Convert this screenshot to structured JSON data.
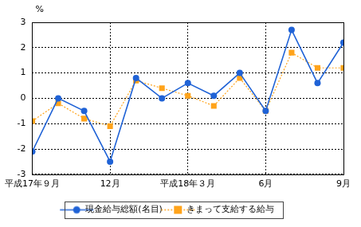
{
  "chart_data": {
    "type": "line",
    "y_label": "%",
    "categories": [
      "平成17年９月",
      null,
      null,
      "12月",
      null,
      null,
      "平成18年３月",
      null,
      null,
      "6月",
      null,
      null,
      "9月"
    ],
    "series": [
      {
        "name": "現金給与総額(名目)",
        "color": "#1f62d6",
        "marker": "circle",
        "line_style": "solid",
        "values": [
          -2.1,
          0.0,
          -0.5,
          -2.5,
          0.8,
          0.0,
          0.6,
          0.1,
          1.0,
          -0.5,
          2.7,
          0.6,
          2.2
        ]
      },
      {
        "name": "きまって支給する給与",
        "color": "#ffa31a",
        "marker": "square",
        "line_style": "dotted",
        "values": [
          -0.9,
          -0.2,
          -0.8,
          -1.1,
          0.7,
          0.4,
          0.1,
          -0.3,
          0.8,
          -0.5,
          1.8,
          1.2,
          1.2
        ]
      }
    ],
    "ylim": [
      -3,
      3
    ],
    "yticks": [
      -3,
      -2,
      -1,
      0,
      1,
      2,
      3
    ],
    "grid": true,
    "legend": "bottom"
  }
}
